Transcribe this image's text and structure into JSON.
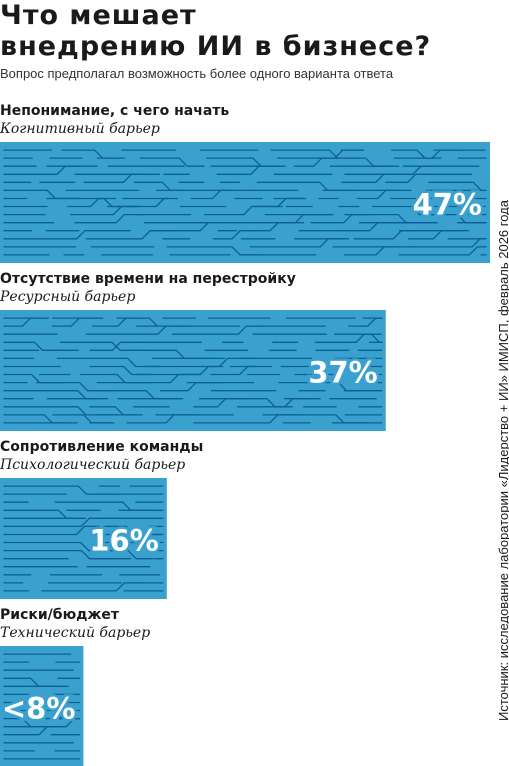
{
  "title_line1": "Что мешает",
  "title_line2": "внедрению ИИ в бизнесе?",
  "subtitle": "Вопрос предполагал возможность более одного варианта ответа",
  "source": "Источник: исследование лаборатории «Лидерство + ИИ» ИМИСП, февраль 2026 года",
  "colors": {
    "bar": "#3aa1cf",
    "circuit": "#0c5f96",
    "value_text": "#ffffff"
  },
  "chart_data": {
    "type": "bar",
    "orientation": "horizontal",
    "categories": [
      "Непонимание, с чего начать",
      "Отсутствие времени на перестройку",
      "Сопротивление команды",
      "Риски/бюджет"
    ],
    "category_subtitles": [
      "Когнитивный барьер",
      "Ресурсный барьер",
      "Психологический барьер",
      "Технический барьер"
    ],
    "values": [
      47,
      37,
      16,
      8
    ],
    "value_labels": [
      "47%",
      "37%",
      "16%",
      "<8%"
    ],
    "xlim": [
      0,
      47
    ],
    "grid": false
  }
}
